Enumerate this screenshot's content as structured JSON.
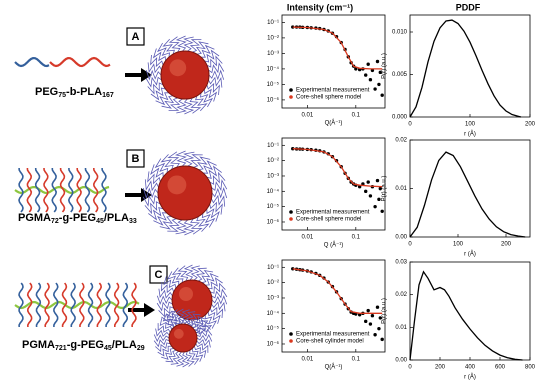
{
  "headers": {
    "intensity": "Intensity (cm⁻¹)",
    "pddf": "PDDF"
  },
  "panels": [
    {
      "letter": "A",
      "polymer": [
        "PEG",
        "75",
        "-b-PLA",
        "167"
      ]
    },
    {
      "letter": "B",
      "polymer": [
        "PGMA",
        "72",
        "-g-PEG",
        "45",
        "/PLA",
        "33"
      ]
    },
    {
      "letter": "C",
      "polymer": [
        "PGMA",
        "721",
        "-g-PEG",
        "45",
        "/PLA",
        "29"
      ]
    }
  ],
  "chart_data": [
    {
      "type": "scatter",
      "log_x": true,
      "log_y": true,
      "x_label": "Q(Å⁻¹)",
      "xlim": [
        0.003,
        0.4
      ],
      "xticks": [
        0.01,
        0.1
      ],
      "ylim": [
        3e-07,
        0.3
      ],
      "yticks": [
        {
          "value": 1e-06,
          "label": "10⁻⁶"
        },
        {
          "value": 1e-05,
          "label": "10⁻⁵"
        },
        {
          "value": 0.0001,
          "label": "10⁻⁴"
        },
        {
          "value": 0.001,
          "label": "10⁻³"
        },
        {
          "value": 0.01,
          "label": "10⁻²"
        },
        {
          "value": 0.1,
          "label": "10⁻¹"
        }
      ],
      "series": [
        {
          "name": "Experimental measurement",
          "color": "#000000",
          "mode": "markers",
          "x": [
            0.005,
            0.006,
            0.007,
            0.008,
            0.01,
            0.012,
            0.015,
            0.018,
            0.022,
            0.027,
            0.033,
            0.04,
            0.05,
            0.06,
            0.07,
            0.08,
            0.09,
            0.1,
            0.12,
            0.14,
            0.16,
            0.18,
            0.2,
            0.22,
            0.25,
            0.28,
            0.3,
            0.32,
            0.35
          ],
          "values": [
            0.05,
            0.05,
            0.05,
            0.048,
            0.047,
            0.045,
            0.043,
            0.04,
            0.035,
            0.028,
            0.02,
            0.012,
            0.005,
            0.0018,
            0.0006,
            0.00025,
            0.00015,
            0.0001,
            9e-05,
            0.0001,
            4e-05,
            0.0002,
            2e-05,
            8e-05,
            5e-06,
            0.0003,
            1e-05,
            6e-05,
            2e-06
          ]
        },
        {
          "name": "Core-shell sphere model",
          "color": "#d9381e",
          "mode": "line",
          "x": [
            0.005,
            0.01,
            0.022,
            0.033,
            0.05,
            0.07,
            0.09,
            0.12,
            0.2,
            0.35
          ],
          "values": [
            0.05,
            0.047,
            0.035,
            0.02,
            0.005,
            0.0006,
            0.00015,
            0.00011,
            0.0001,
            0.0001
          ]
        }
      ]
    },
    {
      "type": "line",
      "x_label": "r (Å)",
      "y_label": "P(r) (a.u.)",
      "xlim": [
        0,
        200
      ],
      "xticks": [
        0,
        100,
        200
      ],
      "ylim": [
        0,
        0.012
      ],
      "yticks": [
        {
          "value": 0,
          "label": "0.000"
        },
        {
          "value": 0.005,
          "label": "0.005"
        },
        {
          "value": 0.01,
          "label": "0.010"
        }
      ],
      "series": [
        {
          "color": "#000000",
          "x": [
            0,
            10,
            20,
            30,
            40,
            50,
            60,
            70,
            80,
            90,
            100,
            110,
            120,
            130,
            140,
            150,
            160,
            170,
            180,
            185
          ],
          "values": [
            0,
            0.0012,
            0.0035,
            0.0065,
            0.0089,
            0.0105,
            0.0113,
            0.0114,
            0.011,
            0.0101,
            0.0088,
            0.0072,
            0.0055,
            0.0039,
            0.0025,
            0.0014,
            0.0007,
            0.0003,
            0.0001,
            0
          ]
        }
      ]
    },
    {
      "type": "scatter",
      "log_x": true,
      "log_y": true,
      "x_label": "Q (Å⁻¹)",
      "xlim": [
        0.003,
        0.4
      ],
      "xticks": [
        0.01,
        0.1
      ],
      "ylim": [
        3e-07,
        0.3
      ],
      "yticks": [
        {
          "value": 1e-06,
          "label": "10⁻⁶"
        },
        {
          "value": 1e-05,
          "label": "10⁻⁵"
        },
        {
          "value": 0.0001,
          "label": "10⁻⁴"
        },
        {
          "value": 0.001,
          "label": "10⁻³"
        },
        {
          "value": 0.01,
          "label": "10⁻²"
        },
        {
          "value": 0.1,
          "label": "10⁻¹"
        }
      ],
      "series": [
        {
          "name": "Experimental measurement",
          "color": "#000000",
          "mode": "markers",
          "x": [
            0.005,
            0.006,
            0.007,
            0.008,
            0.01,
            0.012,
            0.015,
            0.018,
            0.022,
            0.027,
            0.033,
            0.04,
            0.05,
            0.06,
            0.07,
            0.08,
            0.09,
            0.1,
            0.12,
            0.14,
            0.16,
            0.18,
            0.2,
            0.22,
            0.25,
            0.28,
            0.3,
            0.32,
            0.35
          ],
          "values": [
            0.06,
            0.058,
            0.057,
            0.056,
            0.054,
            0.052,
            0.048,
            0.044,
            0.037,
            0.028,
            0.018,
            0.01,
            0.004,
            0.0015,
            0.0007,
            0.0004,
            0.0003,
            0.00025,
            0.0002,
            0.0003,
            0.0001,
            0.0004,
            5e-05,
            0.0002,
            1e-05,
            0.0005,
            3e-05,
            0.00015,
            5e-06
          ]
        },
        {
          "name": "Core-shell sphere model",
          "color": "#d9381e",
          "mode": "line",
          "x": [
            0.005,
            0.01,
            0.022,
            0.033,
            0.05,
            0.07,
            0.09,
            0.12,
            0.2,
            0.35
          ],
          "values": [
            0.06,
            0.054,
            0.037,
            0.018,
            0.004,
            0.0007,
            0.0003,
            0.00025,
            0.00022,
            0.0002
          ]
        }
      ]
    },
    {
      "type": "line",
      "x_label": "r (Å)",
      "y_label": "P(r) (a.u.)",
      "xlim": [
        0,
        250
      ],
      "xticks": [
        0,
        100,
        200
      ],
      "ylim": [
        0,
        0.02
      ],
      "yticks": [
        {
          "value": 0,
          "label": "0.00"
        },
        {
          "value": 0.01,
          "label": "0.01"
        },
        {
          "value": 0.02,
          "label": "0.02"
        }
      ],
      "series": [
        {
          "color": "#000000",
          "x": [
            0,
            15,
            30,
            45,
            60,
            75,
            90,
            105,
            120,
            135,
            150,
            165,
            180,
            195,
            210,
            225,
            240
          ],
          "values": [
            0,
            0.002,
            0.0065,
            0.0118,
            0.0158,
            0.0175,
            0.0168,
            0.0145,
            0.0115,
            0.0085,
            0.0058,
            0.0037,
            0.0021,
            0.0011,
            0.0005,
            0.0002,
            0
          ]
        }
      ]
    },
    {
      "type": "scatter",
      "log_x": true,
      "log_y": true,
      "x_label": "Q(Å⁻¹)",
      "xlim": [
        0.003,
        0.4
      ],
      "xticks": [
        0.01,
        0.1
      ],
      "ylim": [
        3e-07,
        0.3
      ],
      "yticks": [
        {
          "value": 1e-06,
          "label": "10⁻⁶"
        },
        {
          "value": 1e-05,
          "label": "10⁻⁵"
        },
        {
          "value": 0.0001,
          "label": "10⁻⁴"
        },
        {
          "value": 0.001,
          "label": "10⁻³"
        },
        {
          "value": 0.01,
          "label": "10⁻²"
        },
        {
          "value": 0.1,
          "label": "10⁻¹"
        }
      ],
      "series": [
        {
          "name": "Experimental measurement",
          "color": "#000000",
          "mode": "markers",
          "x": [
            0.005,
            0.006,
            0.007,
            0.008,
            0.01,
            0.012,
            0.015,
            0.018,
            0.022,
            0.027,
            0.033,
            0.04,
            0.05,
            0.06,
            0.07,
            0.08,
            0.09,
            0.1,
            0.12,
            0.14,
            0.16,
            0.18,
            0.2,
            0.22,
            0.25,
            0.28,
            0.3,
            0.32,
            0.35
          ],
          "values": [
            0.08,
            0.075,
            0.07,
            0.066,
            0.058,
            0.05,
            0.04,
            0.03,
            0.02,
            0.011,
            0.0055,
            0.0025,
            0.0009,
            0.0004,
            0.0002,
            0.00012,
            0.0001,
            9e-05,
            8e-05,
            0.0001,
            3e-05,
            0.00015,
            2e-05,
            7e-05,
            4e-06,
            0.00025,
            1e-05,
            5e-05,
            2e-06
          ]
        },
        {
          "name": "Core-shell cylinder model",
          "color": "#d9381e",
          "mode": "line",
          "x": [
            0.005,
            0.01,
            0.018,
            0.027,
            0.04,
            0.06,
            0.08,
            0.12,
            0.2,
            0.35
          ],
          "values": [
            0.08,
            0.058,
            0.03,
            0.011,
            0.0025,
            0.0004,
            0.00013,
            0.0001,
            0.0001,
            0.0001
          ]
        }
      ]
    },
    {
      "type": "line",
      "x_label": "r (Å)",
      "y_label": "P(r) (a.u.)",
      "xlim": [
        0,
        800
      ],
      "xticks": [
        0,
        200,
        400,
        600,
        800
      ],
      "ylim": [
        0,
        0.03
      ],
      "yticks": [
        {
          "value": 0,
          "label": "0.00"
        },
        {
          "value": 0.01,
          "label": "0.01"
        },
        {
          "value": 0.02,
          "label": "0.02"
        },
        {
          "value": 0.03,
          "label": "0.03"
        }
      ],
      "series": [
        {
          "color": "#000000",
          "x": [
            0,
            30,
            60,
            90,
            120,
            160,
            200,
            230,
            260,
            300,
            350,
            400,
            450,
            500,
            550,
            600,
            650,
            700,
            750
          ],
          "values": [
            0,
            0.012,
            0.023,
            0.027,
            0.025,
            0.0215,
            0.0222,
            0.0215,
            0.0195,
            0.016,
            0.0125,
            0.0095,
            0.0068,
            0.0045,
            0.0028,
            0.0015,
            0.0007,
            0.0002,
            0
          ]
        }
      ]
    }
  ]
}
